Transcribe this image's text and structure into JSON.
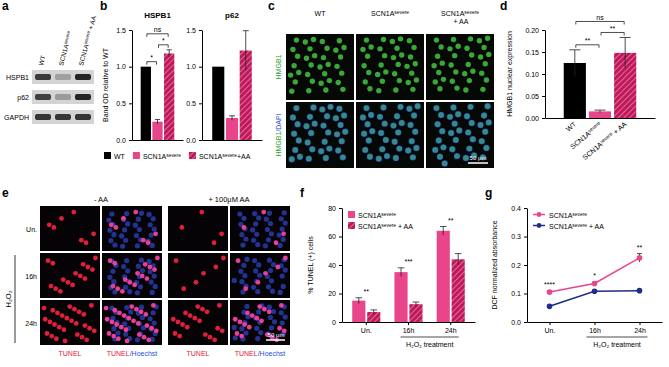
{
  "panel_labels": [
    "a",
    "b",
    "c",
    "d",
    "e",
    "f",
    "g"
  ],
  "blot": {
    "lanes": [
      "WT",
      {
        "text": "SCN1A",
        "sup": "severe"
      },
      {
        "text": "SCN1A",
        "sup": "severe",
        "after": " + AA"
      }
    ],
    "proteins": [
      "HSPB1",
      "p62",
      "GAPDH"
    ]
  },
  "microscopy_c": {
    "columns": [
      "WT",
      {
        "text": "SCN1A",
        "sup": "severe"
      },
      {
        "text": "SCN1A",
        "sup": "severe",
        "after": " + AA"
      }
    ],
    "rows": [
      [
        "HMGB1"
      ],
      [
        "HMGB1",
        "/DAPI"
      ]
    ],
    "scale_bar": "50 μm"
  },
  "microscopy_e": {
    "conditions": [
      "- AA",
      "+ 100μM AA"
    ],
    "rows": [
      "Un.",
      "16h",
      "24h"
    ],
    "treatment": "H₂O₂",
    "treatment_rows": [
      1,
      2
    ],
    "channels": [
      [
        "TUNEL"
      ],
      [
        "TUNEL",
        "/Hoechst"
      ]
    ],
    "scale_bar": "50 μm"
  },
  "chart_data": [
    {
      "type": "bar",
      "title": "HSPB1",
      "y_label": "Band OD relative to WT",
      "categories": [
        null
      ],
      "series": [
        {
          "name": "WT",
          "color": "#000000",
          "values": [
            1.0
          ],
          "errors": [
            null
          ]
        },
        {
          "name": {
            "text": "SCN1A",
            "sup": "severe"
          },
          "color": "#e8458b",
          "values": [
            0.25
          ],
          "errors": [
            0.03
          ]
        },
        {
          "name": {
            "text": "SCN1A",
            "sup": "severe",
            "after": "+AA"
          },
          "color": "#c2185b",
          "line_style": "hatched",
          "values": [
            1.18
          ],
          "errors": [
            0.05
          ]
        }
      ],
      "ylim": [
        0,
        1.5
      ],
      "yticks": [
        {
          "value": 0,
          "label": "0.0"
        },
        {
          "value": 0.5,
          "label": "0.5"
        },
        {
          "value": 1,
          "label": "1.0"
        },
        {
          "value": 1.5,
          "label": "1.5"
        }
      ],
      "comparisons": [
        {
          "pair": [
            0,
            1
          ],
          "label": "*"
        },
        {
          "pair": [
            1,
            2
          ],
          "label": "*"
        },
        {
          "pair": [
            0,
            2
          ],
          "label": "ns"
        }
      ],
      "legend": "bottom"
    },
    {
      "type": "bar",
      "title": "p62",
      "categories": [
        null
      ],
      "series": [
        {
          "color": "#000000",
          "values": [
            1.0
          ],
          "errors": [
            null
          ]
        },
        {
          "color": "#e8458b",
          "values": [
            0.3
          ],
          "errors": [
            0.03
          ]
        },
        {
          "color": "#c2185b",
          "line_style": "hatched",
          "values": [
            1.22
          ],
          "errors": [
            0.27
          ]
        }
      ],
      "ylim": [
        0,
        1.5
      ],
      "yticks": [
        {
          "value": 0,
          "label": "0.0"
        },
        {
          "value": 0.5,
          "label": "0.5"
        },
        {
          "value": 1,
          "label": "1.0"
        },
        {
          "value": 1.5,
          "label": "1.5"
        }
      ]
    },
    {
      "type": "bar",
      "y_label": "HMGB1 nuclear expression",
      "categories": [
        null
      ],
      "series": [
        {
          "name": "WT",
          "color": "#000000",
          "values": [
            0.125
          ],
          "errors": [
            0.03
          ]
        },
        {
          "name": {
            "text": "SCN1A",
            "sup": "severe"
          },
          "color": "#e8458b",
          "values": [
            0.015
          ],
          "errors": [
            0.003
          ]
        },
        {
          "name": {
            "text": "SCN1A",
            "sup": "severe",
            "after": " + AA"
          },
          "color": "#c2185b",
          "line_style": "hatched",
          "values": [
            0.148
          ],
          "errors": [
            0.035
          ]
        }
      ],
      "ylim": [
        0,
        0.2
      ],
      "yticks": [
        {
          "value": 0,
          "label": "0.00"
        },
        {
          "value": 0.05,
          "label": "0.05"
        },
        {
          "value": 0.1,
          "label": "0.10"
        },
        {
          "value": 0.15,
          "label": "0.15"
        },
        {
          "value": 0.2,
          "label": "0.20"
        }
      ],
      "comparisons": [
        {
          "pair": [
            0,
            1
          ],
          "label": "**"
        },
        {
          "pair": [
            1,
            2
          ],
          "label": "**"
        },
        {
          "pair": [
            0,
            2
          ],
          "label": "ns"
        }
      ]
    },
    {
      "type": "bar",
      "y_label": "% TUNEL (+) cells",
      "categories": [
        "Un.",
        "16h",
        "24h"
      ],
      "x_label": "H₂O₂ treatment",
      "x_label_span": [
        1,
        2
      ],
      "series": [
        {
          "name": {
            "text": "SCN1A",
            "sup": "severe"
          },
          "color": "#e8458b",
          "values": [
            15,
            35,
            64
          ],
          "errors": [
            2,
            3,
            3
          ]
        },
        {
          "name": {
            "text": "SCN1A",
            "sup": "severe",
            "after": " + AA"
          },
          "color": "#c2185b",
          "line_style": "hatched",
          "values": [
            7,
            12.5,
            44
          ],
          "errors": [
            1.5,
            1.5,
            4
          ]
        }
      ],
      "ylim": [
        0,
        80
      ],
      "yticks": [
        0,
        20,
        40,
        60,
        80
      ],
      "significance": [
        "**",
        "***",
        "**"
      ],
      "legend": "top-left"
    },
    {
      "type": "line",
      "y_label": "DCF normalized absorbance",
      "categories": [
        "Un.",
        "16h",
        "24h"
      ],
      "x_label": "H₂O₂ treatment",
      "x_label_span": [
        1,
        2
      ],
      "series": [
        {
          "name": {
            "text": "SCN1A",
            "sup": "severe"
          },
          "color": "#e8458b",
          "marker": "circle",
          "values": [
            0.105,
            0.135,
            0.225
          ],
          "errors": [
            0.004,
            0.005,
            0.015
          ]
        },
        {
          "name": {
            "text": "SCN1A",
            "sup": "severe",
            "after": " + AA"
          },
          "color": "#1f2d86",
          "marker": "circle",
          "values": [
            0.055,
            0.108,
            0.11
          ],
          "errors": [
            0.002,
            0.003,
            0.004
          ]
        }
      ],
      "ylim": [
        0,
        0.4
      ],
      "yticks": [
        {
          "value": 0,
          "label": "0.0"
        },
        {
          "value": 0.1,
          "label": "0.1"
        },
        {
          "value": 0.2,
          "label": "0.2"
        },
        {
          "value": 0.3,
          "label": "0.3"
        },
        {
          "value": 0.4,
          "label": "0.4"
        }
      ],
      "significance": [
        "****",
        "*",
        "**"
      ],
      "legend": "top-left"
    }
  ]
}
